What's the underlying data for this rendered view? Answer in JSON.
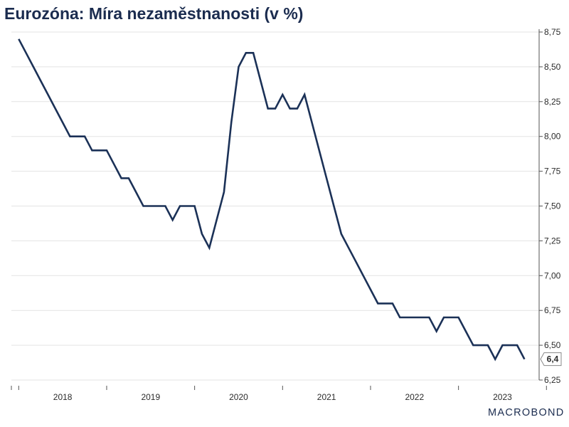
{
  "title": "Eurozóna: Míra nezaměstnanosti (v %)",
  "logo": "MACROBOND",
  "colors": {
    "series": "#1b3157",
    "grid": "#e3e3e3",
    "axis": "#555555",
    "title": "#1b2c4f"
  },
  "chart_data": {
    "type": "line",
    "title": "Eurozóna: Míra nezaměstnanosti (v %)",
    "xlabel": "",
    "ylabel": "",
    "xlim": [
      "2017-12",
      "2023-11"
    ],
    "ylim": [
      6.25,
      8.75
    ],
    "yticks": [
      "6,25",
      "6,50",
      "6,75",
      "7,00",
      "7,25",
      "7,50",
      "7,75",
      "8,00",
      "8,25",
      "8,50",
      "8,75"
    ],
    "xticks": [
      "2018",
      "2019",
      "2020",
      "2021",
      "2022",
      "2023"
    ],
    "grid": true,
    "y_axis_side": "right",
    "last_value_label": "6,4",
    "series": [
      {
        "x": [
          "2018-01",
          "2018-02",
          "2018-03",
          "2018-04",
          "2018-05",
          "2018-06",
          "2018-07",
          "2018-08",
          "2018-09",
          "2018-10",
          "2018-11",
          "2018-12",
          "2019-01",
          "2019-02",
          "2019-03",
          "2019-04",
          "2019-05",
          "2019-06",
          "2019-07",
          "2019-08",
          "2019-09",
          "2019-10",
          "2019-11",
          "2019-12",
          "2020-01",
          "2020-02",
          "2020-03",
          "2020-04",
          "2020-05",
          "2020-06",
          "2020-07",
          "2020-08",
          "2020-09",
          "2020-10",
          "2020-11",
          "2020-12",
          "2021-01",
          "2021-02",
          "2021-03",
          "2021-04",
          "2021-05",
          "2021-06",
          "2021-07",
          "2021-08",
          "2021-09",
          "2021-10",
          "2021-11",
          "2021-12",
          "2022-01",
          "2022-02",
          "2022-03",
          "2022-04",
          "2022-05",
          "2022-06",
          "2022-07",
          "2022-08",
          "2022-09",
          "2022-10",
          "2022-11",
          "2022-12",
          "2023-01",
          "2023-02",
          "2023-03",
          "2023-04",
          "2023-05",
          "2023-06",
          "2023-07",
          "2023-08",
          "2023-09",
          "2023-10"
        ],
        "values": [
          8.7,
          8.6,
          8.5,
          8.4,
          8.3,
          8.2,
          8.1,
          8.0,
          8.0,
          8.0,
          7.9,
          7.9,
          7.9,
          7.8,
          7.7,
          7.7,
          7.6,
          7.5,
          7.5,
          7.5,
          7.5,
          7.4,
          7.5,
          7.5,
          7.5,
          7.3,
          7.2,
          7.4,
          7.6,
          8.1,
          8.5,
          8.6,
          8.6,
          8.4,
          8.2,
          8.2,
          8.3,
          8.2,
          8.2,
          8.3,
          8.1,
          7.9,
          7.7,
          7.5,
          7.3,
          7.2,
          7.1,
          7.0,
          6.9,
          6.8,
          6.8,
          6.8,
          6.7,
          6.7,
          6.7,
          6.7,
          6.7,
          6.6,
          6.7,
          6.7,
          6.7,
          6.6,
          6.5,
          6.5,
          6.5,
          6.4,
          6.5,
          6.5,
          6.5,
          6.4
        ]
      }
    ]
  }
}
